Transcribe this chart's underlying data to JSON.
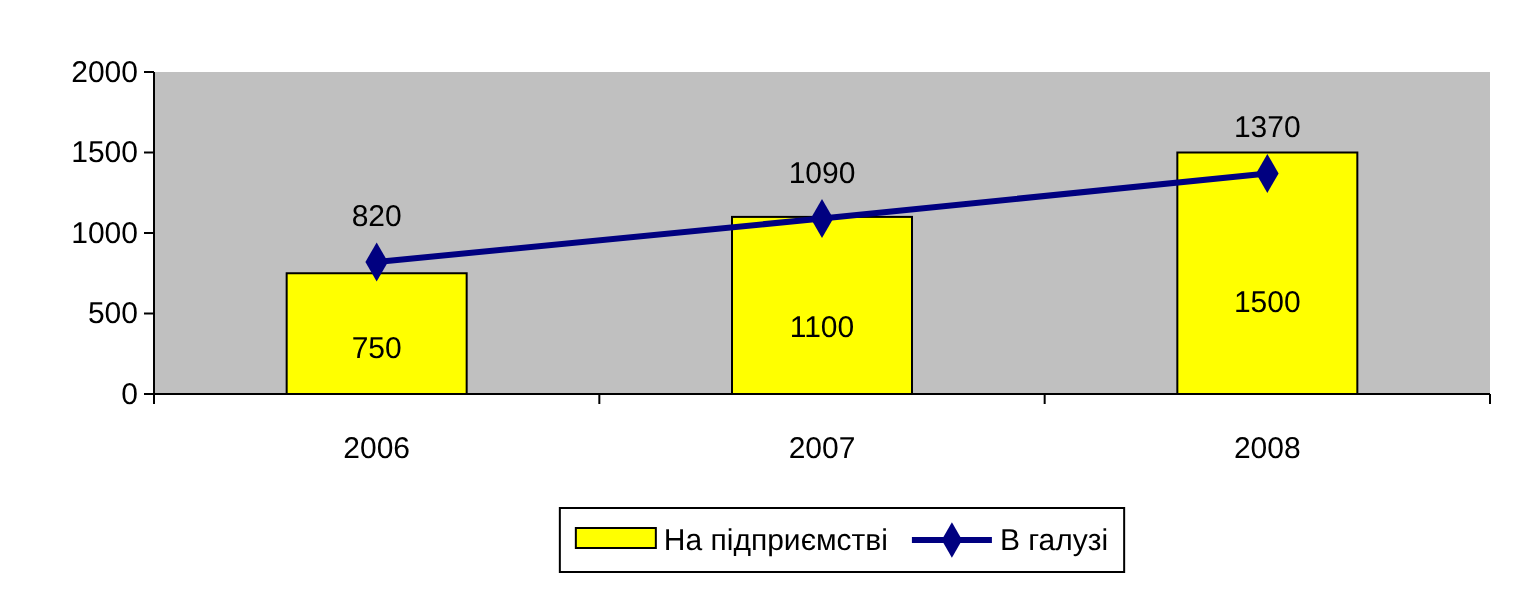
{
  "chart_data": {
    "type": "bar",
    "categories": [
      "2006",
      "2007",
      "2008"
    ],
    "series": [
      {
        "name": "На підприємстві",
        "color": "#ffff00",
        "values": [
          750,
          1100,
          1500
        ]
      },
      {
        "name": "В галузі",
        "type": "line",
        "color": "#000080",
        "values": [
          820,
          1090,
          1370
        ]
      }
    ],
    "ylim": [
      0,
      2000
    ],
    "yticks": [
      0,
      500,
      1000,
      1500,
      2000
    ],
    "data_labels": true,
    "legend": "bottom",
    "marker": "diamond"
  }
}
